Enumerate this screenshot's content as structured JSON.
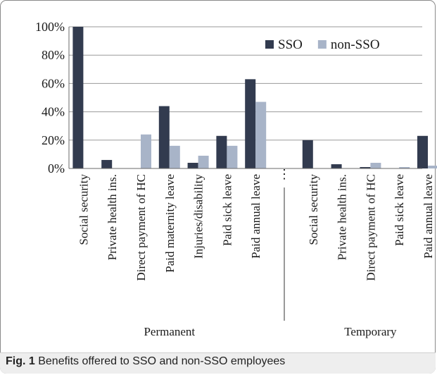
{
  "caption": {
    "label": "Fig. 1",
    "text": "Benefits offered to SSO and non-SSO employees"
  },
  "chart_data": {
    "type": "bar",
    "title": "",
    "xlabel": "",
    "ylabel": "",
    "ylim": [
      0,
      100
    ],
    "y_ticks": [
      "0%",
      "20%",
      "40%",
      "60%",
      "80%",
      "100%"
    ],
    "y_tick_values": [
      0,
      20,
      40,
      60,
      80,
      100
    ],
    "grid": true,
    "legend_position": "top-right",
    "separator_glyph": "⋮",
    "colors": {
      "sso": "#323b4f",
      "non_sso": "#a8b4c8",
      "grid": "#9a9a9a",
      "axis": "#6a6a6a"
    },
    "series": [
      {
        "name": "SSO",
        "key": "sso"
      },
      {
        "name": "non-SSO",
        "key": "non_sso"
      }
    ],
    "groups": [
      {
        "name": "Permanent",
        "categories": [
          "Social security",
          "Private health ins.",
          "Direct payment of HC",
          "Paid maternity leave",
          "Injuries/disability",
          "Paid sick leave",
          "Paid annual leave"
        ],
        "values": {
          "sso": [
            100,
            6,
            0,
            44,
            4,
            23,
            63
          ],
          "non_sso": [
            0,
            0,
            24,
            16,
            9,
            16,
            47
          ]
        }
      },
      {
        "name": "Temporary",
        "categories": [
          "Social security",
          "Private health ins.",
          "Direct payment of HC",
          "Paid sick leave",
          "Paid annual leave"
        ],
        "values": {
          "sso": [
            20,
            3,
            1,
            0,
            23
          ],
          "non_sso": [
            0,
            0,
            4,
            1,
            2
          ]
        }
      }
    ]
  }
}
